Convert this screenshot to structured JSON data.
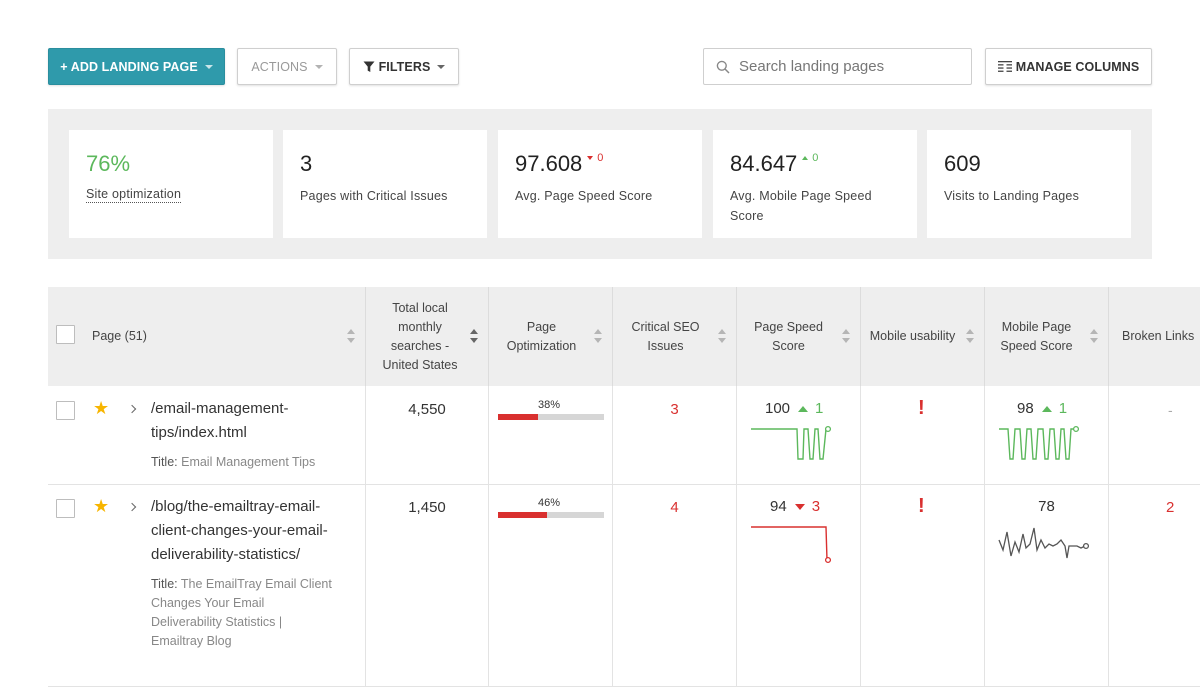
{
  "toolbar": {
    "add_label": "+ ADD LANDING PAGE",
    "actions_label": "ACTIONS",
    "filters_label": "FILTERS",
    "search_placeholder": "Search landing pages",
    "manage_columns_label": "MANAGE COLUMNS"
  },
  "colors": {
    "accent": "#2f9aab",
    "good": "#5cb85c",
    "bad": "#d9302f"
  },
  "stats": [
    {
      "value": "76%",
      "label": "Site optimization"
    },
    {
      "value": "3",
      "label": "Pages with Critical Issues"
    },
    {
      "value": "97.608",
      "delta": "0",
      "direction": "down",
      "label": "Avg. Page Speed Score"
    },
    {
      "value": "84.647",
      "delta": "0",
      "direction": "up",
      "label": "Avg. Mobile Page Speed Score"
    },
    {
      "value": "609",
      "label": "Visits to Landing Pages"
    }
  ],
  "table": {
    "headers": {
      "page": "Page (51)",
      "searches": "Total local monthly searches - United States",
      "optimization": "Page Optimization",
      "critical": "Critical SEO Issues",
      "speed": "Page Speed Score",
      "mobile": "Mobile usability",
      "mobile_speed": "Mobile Page Speed Score",
      "broken": "Broken Links"
    },
    "rows": [
      {
        "url": "/email-management-tips/index.html",
        "title_label": "Title:",
        "title": "Email Management Tips",
        "searches": "4,550",
        "optimization": "38%",
        "optimization_value": 0.38,
        "critical": "3",
        "speed": "100",
        "speed_delta": "1",
        "speed_direction": "up",
        "mobile_speed": "98",
        "mobile_speed_delta": "1",
        "mobile_speed_direction": "up",
        "broken": "-"
      },
      {
        "url": "/blog/the-emailtray-email-client-changes-your-email-deliverability-statistics/",
        "title_label": "Title:",
        "title": "The EmailTray Email Client Changes Your Email Deliverability Statistics | Emailtray Blog",
        "searches": "1,450",
        "optimization": "46%",
        "optimization_value": 0.46,
        "critical": "4",
        "speed": "94",
        "speed_delta": "3",
        "speed_direction": "down",
        "mobile_speed": "78",
        "broken": "2"
      }
    ]
  }
}
